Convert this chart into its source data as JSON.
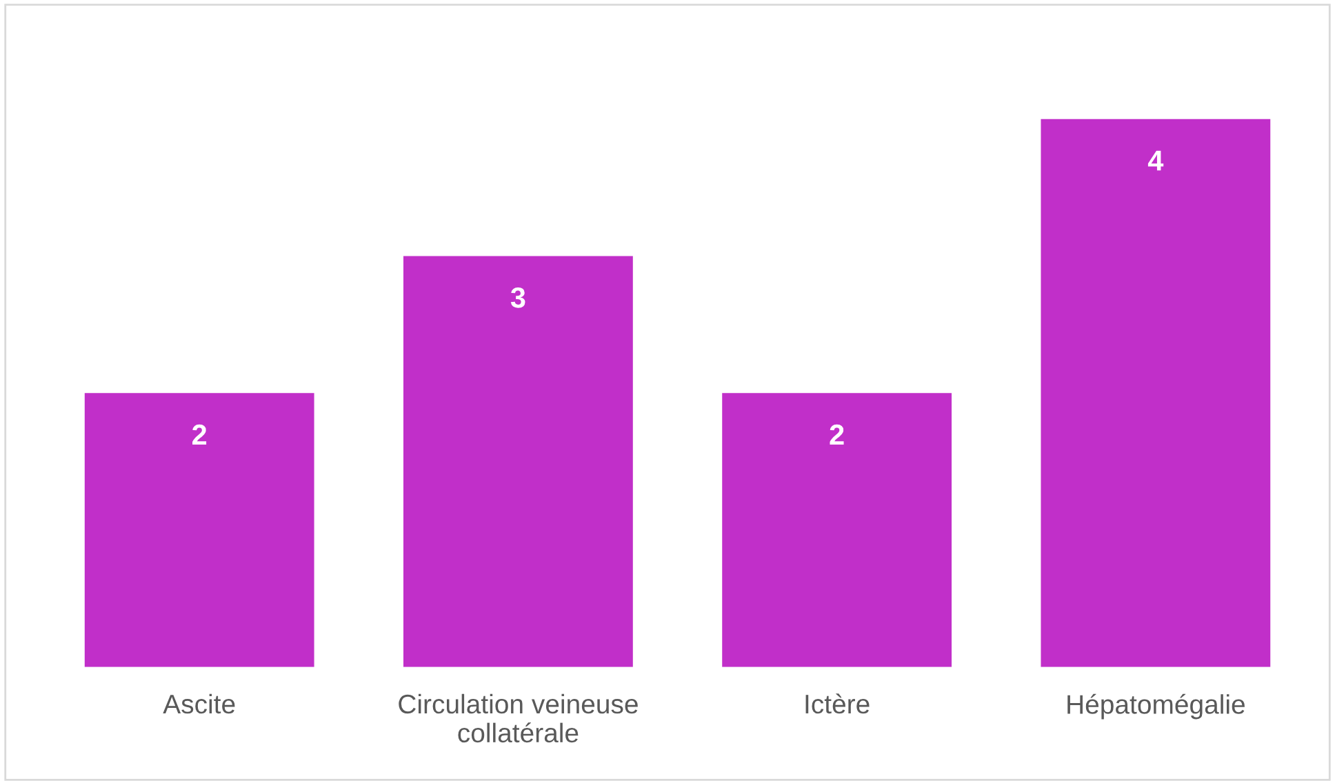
{
  "chart_data": {
    "type": "bar",
    "categories": [
      "Ascite",
      "Circulation veineuse\ncollatérale",
      "Ictère",
      "Hépatomégalie"
    ],
    "values": [
      2,
      3,
      2,
      4
    ],
    "color": "#c12fc9",
    "data_labels": true,
    "grid": false,
    "legend": false
  }
}
